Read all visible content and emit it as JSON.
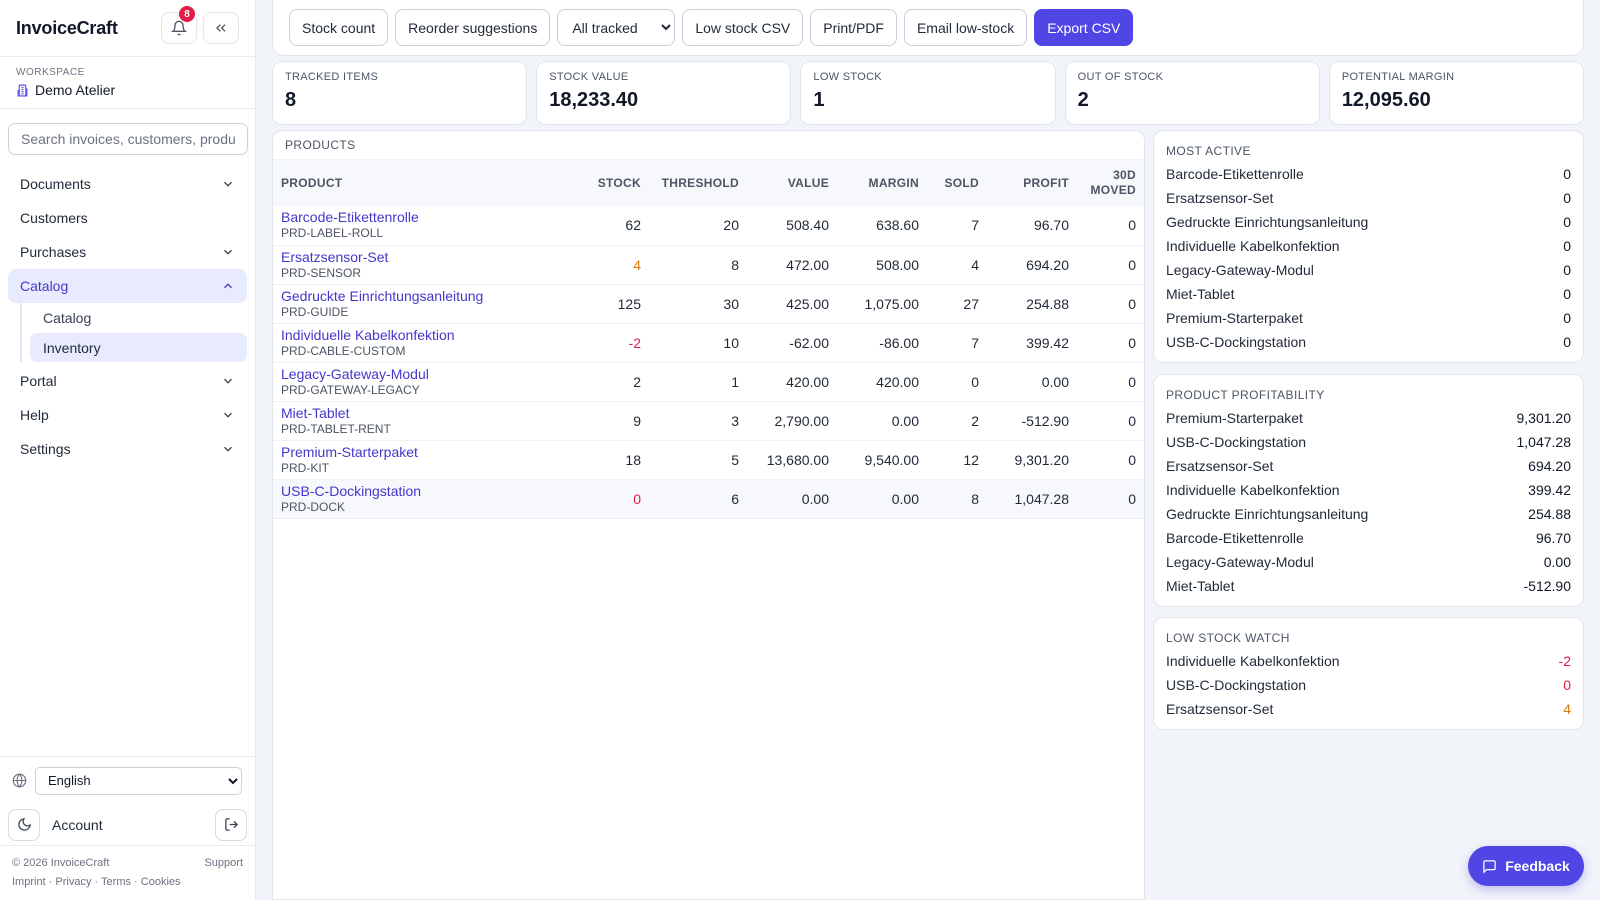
{
  "app": {
    "brand": "InvoiceCraft",
    "notifications": "8"
  },
  "workspace": {
    "label": "WORKSPACE",
    "name": "Demo Atelier"
  },
  "search": {
    "placeholder": "Search invoices, customers, products"
  },
  "nav": {
    "documents": "Documents",
    "customers": "Customers",
    "purchases": "Purchases",
    "catalog": "Catalog",
    "catalog_sub": [
      "Catalog",
      "Inventory"
    ],
    "portal": "Portal",
    "help": "Help",
    "settings": "Settings"
  },
  "language": {
    "selected": "English"
  },
  "account": {
    "label": "Account"
  },
  "footer": {
    "copyright": "© 2026 InvoiceCraft",
    "support": "Support",
    "links": [
      "Imprint",
      "Privacy",
      "Terms",
      "Cookies"
    ]
  },
  "toolbar": {
    "stock_count": "Stock count",
    "reorder": "Reorder suggestions",
    "filter_selected": "All tracked",
    "low_stock_csv": "Low stock CSV",
    "print_pdf": "Print/PDF",
    "email_low": "Email low-stock",
    "export_csv": "Export CSV"
  },
  "kpis": [
    {
      "label": "TRACKED ITEMS",
      "value": "8"
    },
    {
      "label": "STOCK VALUE",
      "value": "18,233.40"
    },
    {
      "label": "LOW STOCK",
      "value": "1"
    },
    {
      "label": "OUT OF STOCK",
      "value": "2"
    },
    {
      "label": "POTENTIAL MARGIN",
      "value": "12,095.60"
    }
  ],
  "products": {
    "title": "PRODUCTS",
    "columns": {
      "product": "PRODUCT",
      "stock": "STOCK",
      "threshold": "THRESHOLD",
      "value": "VALUE",
      "margin": "MARGIN",
      "sold": "SOLD",
      "profit": "PROFIT",
      "moved_1": "30D",
      "moved_2": "MOVED"
    },
    "rows": [
      {
        "name": "Barcode-Etikettenrolle",
        "sku": "PRD-LABEL-ROLL",
        "stock": "62",
        "threshold": "20",
        "value": "508.40",
        "margin": "638.60",
        "sold": "7",
        "profit": "96.70",
        "moved": "0"
      },
      {
        "name": "Ersatzsensor-Set",
        "sku": "PRD-SENSOR",
        "stock": "4",
        "threshold": "8",
        "value": "472.00",
        "margin": "508.00",
        "sold": "4",
        "profit": "694.20",
        "moved": "0"
      },
      {
        "name": "Gedruckte Einrichtungsanleitung",
        "sku": "PRD-GUIDE",
        "stock": "125",
        "threshold": "30",
        "value": "425.00",
        "margin": "1,075.00",
        "sold": "27",
        "profit": "254.88",
        "moved": "0"
      },
      {
        "name": "Individuelle Kabelkonfektion",
        "sku": "PRD-CABLE-CUSTOM",
        "stock": "-2",
        "threshold": "10",
        "value": "-62.00",
        "margin": "-86.00",
        "sold": "7",
        "profit": "399.42",
        "moved": "0"
      },
      {
        "name": "Legacy-Gateway-Modul",
        "sku": "PRD-GATEWAY-LEGACY",
        "stock": "2",
        "threshold": "1",
        "value": "420.00",
        "margin": "420.00",
        "sold": "0",
        "profit": "0.00",
        "moved": "0"
      },
      {
        "name": "Miet-Tablet",
        "sku": "PRD-TABLET-RENT",
        "stock": "9",
        "threshold": "3",
        "value": "2,790.00",
        "margin": "0.00",
        "sold": "2",
        "profit": "-512.90",
        "moved": "0"
      },
      {
        "name": "Premium-Starterpaket",
        "sku": "PRD-KIT",
        "stock": "18",
        "threshold": "5",
        "value": "13,680.00",
        "margin": "9,540.00",
        "sold": "12",
        "profit": "9,301.20",
        "moved": "0"
      },
      {
        "name": "USB-C-Dockingstation",
        "sku": "PRD-DOCK",
        "stock": "0",
        "threshold": "6",
        "value": "0.00",
        "margin": "0.00",
        "sold": "8",
        "profit": "1,047.28",
        "moved": "0"
      }
    ]
  },
  "most_active": {
    "title": "MOST ACTIVE",
    "rows": [
      {
        "name": "Barcode-Etikettenrolle",
        "value": "0"
      },
      {
        "name": "Ersatzsensor-Set",
        "value": "0"
      },
      {
        "name": "Gedruckte Einrichtungsanleitung",
        "value": "0"
      },
      {
        "name": "Individuelle Kabelkonfektion",
        "value": "0"
      },
      {
        "name": "Legacy-Gateway-Modul",
        "value": "0"
      },
      {
        "name": "Miet-Tablet",
        "value": "0"
      },
      {
        "name": "Premium-Starterpaket",
        "value": "0"
      },
      {
        "name": "USB-C-Dockingstation",
        "value": "0"
      }
    ]
  },
  "profitability": {
    "title": "PRODUCT PROFITABILITY",
    "rows": [
      {
        "name": "Premium-Starterpaket",
        "value": "9,301.20"
      },
      {
        "name": "USB-C-Dockingstation",
        "value": "1,047.28"
      },
      {
        "name": "Ersatzsensor-Set",
        "value": "694.20"
      },
      {
        "name": "Individuelle Kabelkonfektion",
        "value": "399.42"
      },
      {
        "name": "Gedruckte Einrichtungsanleitung",
        "value": "254.88"
      },
      {
        "name": "Barcode-Etikettenrolle",
        "value": "96.70"
      },
      {
        "name": "Legacy-Gateway-Modul",
        "value": "0.00"
      },
      {
        "name": "Miet-Tablet",
        "value": "-512.90"
      }
    ]
  },
  "low_stock_watch": {
    "title": "LOW STOCK WATCH",
    "rows": [
      {
        "name": "Individuelle Kabelkonfektion",
        "value": "-2"
      },
      {
        "name": "USB-C-Dockingstation",
        "value": "0"
      },
      {
        "name": "Ersatzsensor-Set",
        "value": "4"
      }
    ]
  },
  "colors": {
    "accent": "#4f46e5",
    "warning": "#d97706",
    "danger": "#e11d48"
  },
  "feedback": {
    "label": "Feedback"
  }
}
